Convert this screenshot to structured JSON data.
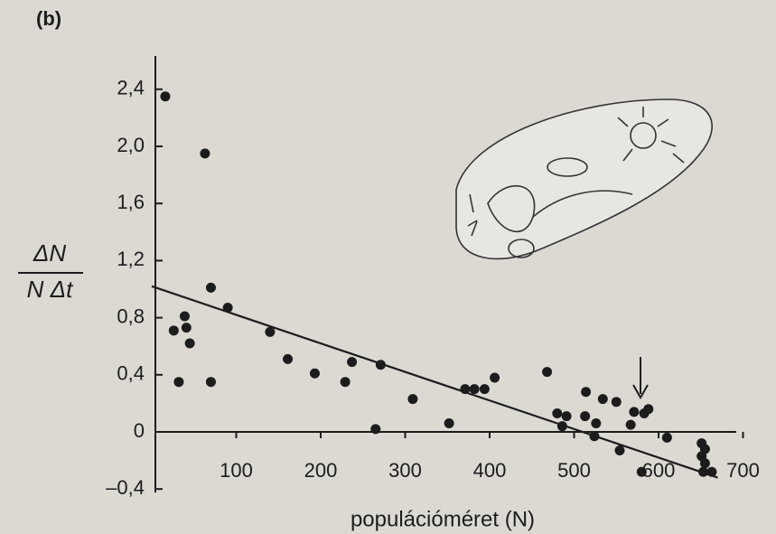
{
  "chart_data": {
    "type": "scatter",
    "title": "(b)",
    "y_label_numerator": "ΔN",
    "y_label_denominator": "N Δt",
    "x_label": "populációméret (N)",
    "color": "#1c1c1c",
    "xlim": [
      0,
      700
    ],
    "ylim": [
      -0.4,
      2.4
    ],
    "xticks": [
      100,
      200,
      300,
      400,
      500,
      600,
      700
    ],
    "yticks": [
      {
        "value": -0.4,
        "label": "–0,4"
      },
      0,
      {
        "value": 0.4,
        "label": "0,4"
      },
      {
        "value": 0.8,
        "label": "0,8"
      },
      {
        "value": 1.2,
        "label": "1,2"
      },
      {
        "value": 1.6,
        "label": "1,6"
      },
      {
        "value": 2.0,
        "label": "2,0"
      },
      {
        "value": 2.4,
        "label": "2,4"
      }
    ],
    "x": [
      16,
      63,
      70,
      90,
      26,
      39,
      41,
      45,
      32,
      70,
      140,
      161,
      193,
      229,
      237,
      271,
      265,
      309,
      352,
      371,
      382,
      394,
      406,
      468,
      480,
      491,
      486,
      514,
      513,
      526,
      524,
      534,
      550,
      567,
      554,
      571,
      583,
      588,
      580,
      610,
      651,
      651,
      653,
      663,
      655,
      655
    ],
    "values": [
      2.35,
      1.95,
      1.01,
      0.87,
      0.71,
      0.81,
      0.73,
      0.62,
      0.35,
      0.35,
      0.7,
      0.51,
      0.41,
      0.35,
      0.49,
      0.47,
      0.02,
      0.23,
      0.06,
      0.3,
      0.3,
      0.3,
      0.38,
      0.42,
      0.13,
      0.11,
      0.04,
      0.28,
      0.11,
      0.06,
      -0.03,
      0.23,
      0.21,
      0.05,
      -0.13,
      0.14,
      0.13,
      0.16,
      -0.28,
      -0.04,
      -0.08,
      -0.17,
      -0.28,
      -0.28,
      -0.12,
      -0.22
    ],
    "fit_line": {
      "x": [
        0,
        670
      ],
      "values": [
        1.02,
        -0.32
      ]
    }
  }
}
